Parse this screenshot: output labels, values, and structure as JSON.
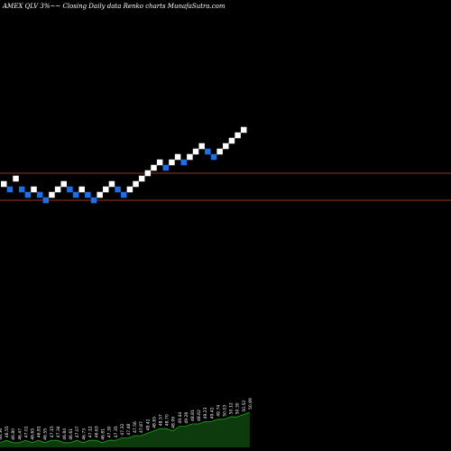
{
  "chart_data": {
    "type": "renko",
    "title": "AMEX  QLV  3%~~  Closing Daily data  Renko  charts MunafaSutra.com",
    "colors": {
      "background": "#000000",
      "up_brick": "#ffffff",
      "down_brick": "#1e6fe6",
      "reference_line": "#8b3a1e",
      "volume_fill": "#0d3b0d",
      "volume_line": "#1aa51a"
    },
    "reference_levels": [
      47.9,
      46.4
    ],
    "bricks": [
      {
        "level": 47.3,
        "dir": "up"
      },
      {
        "level": 47.0,
        "dir": "down"
      },
      {
        "level": 47.6,
        "dir": "up"
      },
      {
        "level": 47.0,
        "dir": "down"
      },
      {
        "level": 46.7,
        "dir": "down"
      },
      {
        "level": 47.0,
        "dir": "up"
      },
      {
        "level": 46.7,
        "dir": "down"
      },
      {
        "level": 46.4,
        "dir": "down"
      },
      {
        "level": 46.7,
        "dir": "up"
      },
      {
        "level": 47.0,
        "dir": "up"
      },
      {
        "level": 47.3,
        "dir": "up"
      },
      {
        "level": 47.0,
        "dir": "down"
      },
      {
        "level": 46.7,
        "dir": "down"
      },
      {
        "level": 47.0,
        "dir": "up"
      },
      {
        "level": 46.7,
        "dir": "down"
      },
      {
        "level": 46.4,
        "dir": "down"
      },
      {
        "level": 46.7,
        "dir": "up"
      },
      {
        "level": 47.0,
        "dir": "up"
      },
      {
        "level": 47.3,
        "dir": "up"
      },
      {
        "level": 47.0,
        "dir": "down"
      },
      {
        "level": 46.7,
        "dir": "down"
      },
      {
        "level": 47.0,
        "dir": "up"
      },
      {
        "level": 47.3,
        "dir": "up"
      },
      {
        "level": 47.6,
        "dir": "up"
      },
      {
        "level": 47.9,
        "dir": "up"
      },
      {
        "level": 48.2,
        "dir": "up"
      },
      {
        "level": 48.5,
        "dir": "up"
      },
      {
        "level": 48.2,
        "dir": "down"
      },
      {
        "level": 48.5,
        "dir": "up"
      },
      {
        "level": 48.8,
        "dir": "up"
      },
      {
        "level": 48.5,
        "dir": "down"
      },
      {
        "level": 48.8,
        "dir": "up"
      },
      {
        "level": 49.1,
        "dir": "up"
      },
      {
        "level": 49.4,
        "dir": "up"
      },
      {
        "level": 49.1,
        "dir": "down"
      },
      {
        "level": 48.8,
        "dir": "down"
      },
      {
        "level": 49.1,
        "dir": "up"
      },
      {
        "level": 49.4,
        "dir": "up"
      },
      {
        "level": 49.7,
        "dir": "up"
      },
      {
        "level": 50.0,
        "dir": "up"
      },
      {
        "level": 50.3,
        "dir": "up"
      }
    ],
    "volume": [
      2,
      3,
      2,
      2,
      3,
      2,
      3,
      2,
      3,
      3,
      2,
      2,
      3,
      2,
      3,
      3,
      2,
      3,
      3,
      4,
      4,
      5,
      5,
      6,
      7,
      8,
      8,
      7,
      9,
      9,
      10,
      10,
      11,
      11,
      12,
      12,
      13,
      13,
      14,
      15
    ],
    "volume_labels": [
      "46.56",
      "46.55",
      "46.80",
      "46.47",
      "47.01",
      "46.65",
      "46.81",
      "46.55",
      "47.15",
      "47.34",
      "46.84",
      "46.61",
      "47.07",
      "46.73",
      "47.12",
      "46.63",
      "46.81",
      "47.30",
      "47.35",
      "47.32",
      "47.48",
      "47.56",
      "47.87",
      "48.41",
      "48.65",
      "48.57",
      "48.70",
      "48.99",
      "49.44",
      "49.26",
      "48.81",
      "48.62",
      "49.23",
      "49.41",
      "49.74",
      "50.03",
      "50.12",
      "50.30",
      "50.52",
      "50.89"
    ]
  }
}
